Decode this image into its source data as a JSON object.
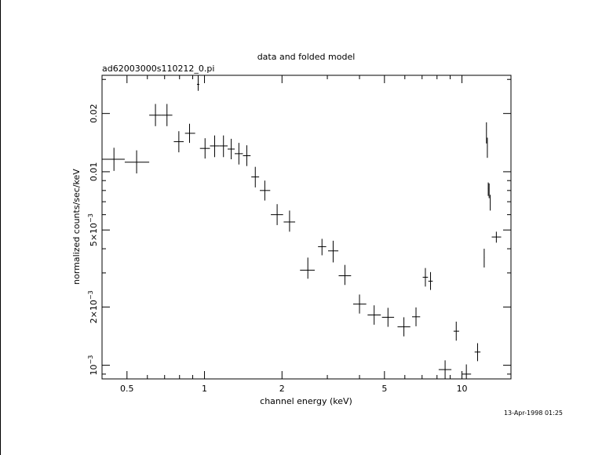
{
  "chart_data": {
    "type": "scatter",
    "title": "data and folded model",
    "subtitle": "ad62003000s110212_0.pi",
    "xlabel": "channel energy (keV)",
    "ylabel": "normalized counts/sec/keV",
    "timestamp": "13-Apr-1998 01:25",
    "x_scale": "log",
    "y_scale": "log",
    "xlim": [
      0.4,
      15.5
    ],
    "ylim": [
      0.00085,
      0.0315
    ],
    "grid": false,
    "x_ticks_major": [
      {
        "value": 0.5,
        "label": "0.5"
      },
      {
        "value": 1,
        "label": "1"
      },
      {
        "value": 2,
        "label": "2"
      },
      {
        "value": 5,
        "label": "5"
      },
      {
        "value": 10,
        "label": "10"
      }
    ],
    "y_ticks_major": [
      {
        "value": 0.001,
        "mantissa": "10",
        "exponent": "−3"
      },
      {
        "value": 0.002,
        "mantissa": "2×10",
        "exponent": "−3"
      },
      {
        "value": 0.005,
        "mantissa": "5×10",
        "exponent": "−3"
      },
      {
        "value": 0.01,
        "mantissa": "0.01",
        "exponent": ""
      },
      {
        "value": 0.02,
        "mantissa": "0.02",
        "exponent": ""
      }
    ],
    "series": [
      {
        "points": [
          {
            "x": 0.445,
            "xlo": 0.4,
            "xhi": 0.49,
            "y": 0.0116,
            "ylo": 0.0101,
            "yhi": 0.0133
          },
          {
            "x": 0.545,
            "xlo": 0.49,
            "xhi": 0.61,
            "y": 0.0112,
            "ylo": 0.0098,
            "yhi": 0.0129
          },
          {
            "x": 0.645,
            "xlo": 0.61,
            "xhi": 0.68,
            "y": 0.0196,
            "ylo": 0.0172,
            "yhi": 0.0224
          },
          {
            "x": 0.715,
            "xlo": 0.68,
            "xhi": 0.75,
            "y": 0.0196,
            "ylo": 0.0172,
            "yhi": 0.0224
          },
          {
            "x": 0.795,
            "xlo": 0.76,
            "xhi": 0.83,
            "y": 0.0143,
            "ylo": 0.0126,
            "yhi": 0.0162
          },
          {
            "x": 0.875,
            "xlo": 0.84,
            "xhi": 0.92,
            "y": 0.0158,
            "ylo": 0.0141,
            "yhi": 0.0177
          },
          {
            "x": 0.945,
            "xlo": 0.935,
            "xhi": 0.955,
            "y": 0.0283,
            "ylo": 0.0262,
            "yhi": 0.0315
          },
          {
            "x": 1.005,
            "xlo": 0.96,
            "xhi": 1.05,
            "y": 0.0132,
            "ylo": 0.0117,
            "yhi": 0.0149
          },
          {
            "x": 1.095,
            "xlo": 1.05,
            "xhi": 1.14,
            "y": 0.0136,
            "ylo": 0.0119,
            "yhi": 0.0154
          },
          {
            "x": 1.185,
            "xlo": 1.14,
            "xhi": 1.23,
            "y": 0.0136,
            "ylo": 0.0119,
            "yhi": 0.0154
          },
          {
            "x": 1.27,
            "xlo": 1.23,
            "xhi": 1.31,
            "y": 0.0131,
            "ylo": 0.0116,
            "yhi": 0.0148
          },
          {
            "x": 1.36,
            "xlo": 1.31,
            "xhi": 1.41,
            "y": 0.0124,
            "ylo": 0.0109,
            "yhi": 0.0141
          },
          {
            "x": 1.46,
            "xlo": 1.41,
            "xhi": 1.51,
            "y": 0.0121,
            "ylo": 0.0107,
            "yhi": 0.0137
          },
          {
            "x": 1.575,
            "xlo": 1.52,
            "xhi": 1.63,
            "y": 0.0094,
            "ylo": 0.0083,
            "yhi": 0.0106
          },
          {
            "x": 1.715,
            "xlo": 1.64,
            "xhi": 1.8,
            "y": 0.008,
            "ylo": 0.0071,
            "yhi": 0.009
          },
          {
            "x": 1.915,
            "xlo": 1.81,
            "xhi": 2.02,
            "y": 0.006,
            "ylo": 0.0053,
            "yhi": 0.0068
          },
          {
            "x": 2.14,
            "xlo": 2.03,
            "xhi": 2.25,
            "y": 0.0055,
            "ylo": 0.0049,
            "yhi": 0.0063
          },
          {
            "x": 2.52,
            "xlo": 2.35,
            "xhi": 2.68,
            "y": 0.0031,
            "ylo": 0.0028,
            "yhi": 0.0036
          },
          {
            "x": 2.86,
            "xlo": 2.76,
            "xhi": 2.97,
            "y": 0.0041,
            "ylo": 0.0037,
            "yhi": 0.0045
          },
          {
            "x": 3.16,
            "xlo": 3.02,
            "xhi": 3.31,
            "y": 0.0039,
            "ylo": 0.0034,
            "yhi": 0.0044
          },
          {
            "x": 3.51,
            "xlo": 3.32,
            "xhi": 3.71,
            "y": 0.0029,
            "ylo": 0.0026,
            "yhi": 0.0033
          },
          {
            "x": 4.0,
            "xlo": 3.78,
            "xhi": 4.25,
            "y": 0.00207,
            "ylo": 0.00185,
            "yhi": 0.00232
          },
          {
            "x": 4.56,
            "xlo": 4.3,
            "xhi": 4.84,
            "y": 0.00182,
            "ylo": 0.00162,
            "yhi": 0.00204
          },
          {
            "x": 5.16,
            "xlo": 4.89,
            "xhi": 5.45,
            "y": 0.00177,
            "ylo": 0.00158,
            "yhi": 0.00198
          },
          {
            "x": 5.95,
            "xlo": 5.62,
            "xhi": 6.3,
            "y": 0.00158,
            "ylo": 0.00141,
            "yhi": 0.00177
          },
          {
            "x": 6.63,
            "xlo": 6.4,
            "xhi": 6.88,
            "y": 0.00178,
            "ylo": 0.00159,
            "yhi": 0.00199
          },
          {
            "x": 7.21,
            "xlo": 7.04,
            "xhi": 7.38,
            "y": 0.00285,
            "ylo": 0.00255,
            "yhi": 0.00318
          },
          {
            "x": 7.55,
            "xlo": 7.4,
            "xhi": 7.7,
            "y": 0.00272,
            "ylo": 0.00245,
            "yhi": 0.00303
          },
          {
            "x": 8.6,
            "xlo": 8.12,
            "xhi": 9.1,
            "y": 0.00095,
            "ylo": 0.00085,
            "yhi": 0.00106
          },
          {
            "x": 9.5,
            "xlo": 9.28,
            "xhi": 9.75,
            "y": 0.0015,
            "ylo": 0.00134,
            "yhi": 0.00168
          },
          {
            "x": 10.4,
            "xlo": 10.0,
            "xhi": 10.85,
            "y": 0.0009,
            "ylo": 0.00085,
            "yhi": 0.00101
          },
          {
            "x": 11.5,
            "xlo": 11.2,
            "xhi": 11.8,
            "y": 0.00117,
            "ylo": 0.00105,
            "yhi": 0.0013
          },
          {
            "x": 12.2,
            "xlo": 12.17,
            "xhi": 12.23,
            "y": 0.0036,
            "ylo": 0.0032,
            "yhi": 0.004
          },
          {
            "x": 12.45,
            "xlo": 12.43,
            "xhi": 12.47,
            "y": 0.0164,
            "ylo": 0.014,
            "yhi": 0.018
          },
          {
            "x": 12.55,
            "xlo": 12.53,
            "xhi": 12.57,
            "y": 0.0135,
            "ylo": 0.0118,
            "yhi": 0.015
          },
          {
            "x": 12.65,
            "xlo": 12.63,
            "xhi": 12.67,
            "y": 0.0082,
            "ylo": 0.0075,
            "yhi": 0.0088
          },
          {
            "x": 12.75,
            "xlo": 12.73,
            "xhi": 12.77,
            "y": 0.008,
            "ylo": 0.0073,
            "yhi": 0.0087
          },
          {
            "x": 12.88,
            "xlo": 12.86,
            "xhi": 12.9,
            "y": 0.0069,
            "ylo": 0.0063,
            "yhi": 0.0076
          },
          {
            "x": 13.6,
            "xlo": 13.05,
            "xhi": 14.2,
            "y": 0.0046,
            "ylo": 0.0043,
            "yhi": 0.0049
          }
        ]
      }
    ]
  }
}
